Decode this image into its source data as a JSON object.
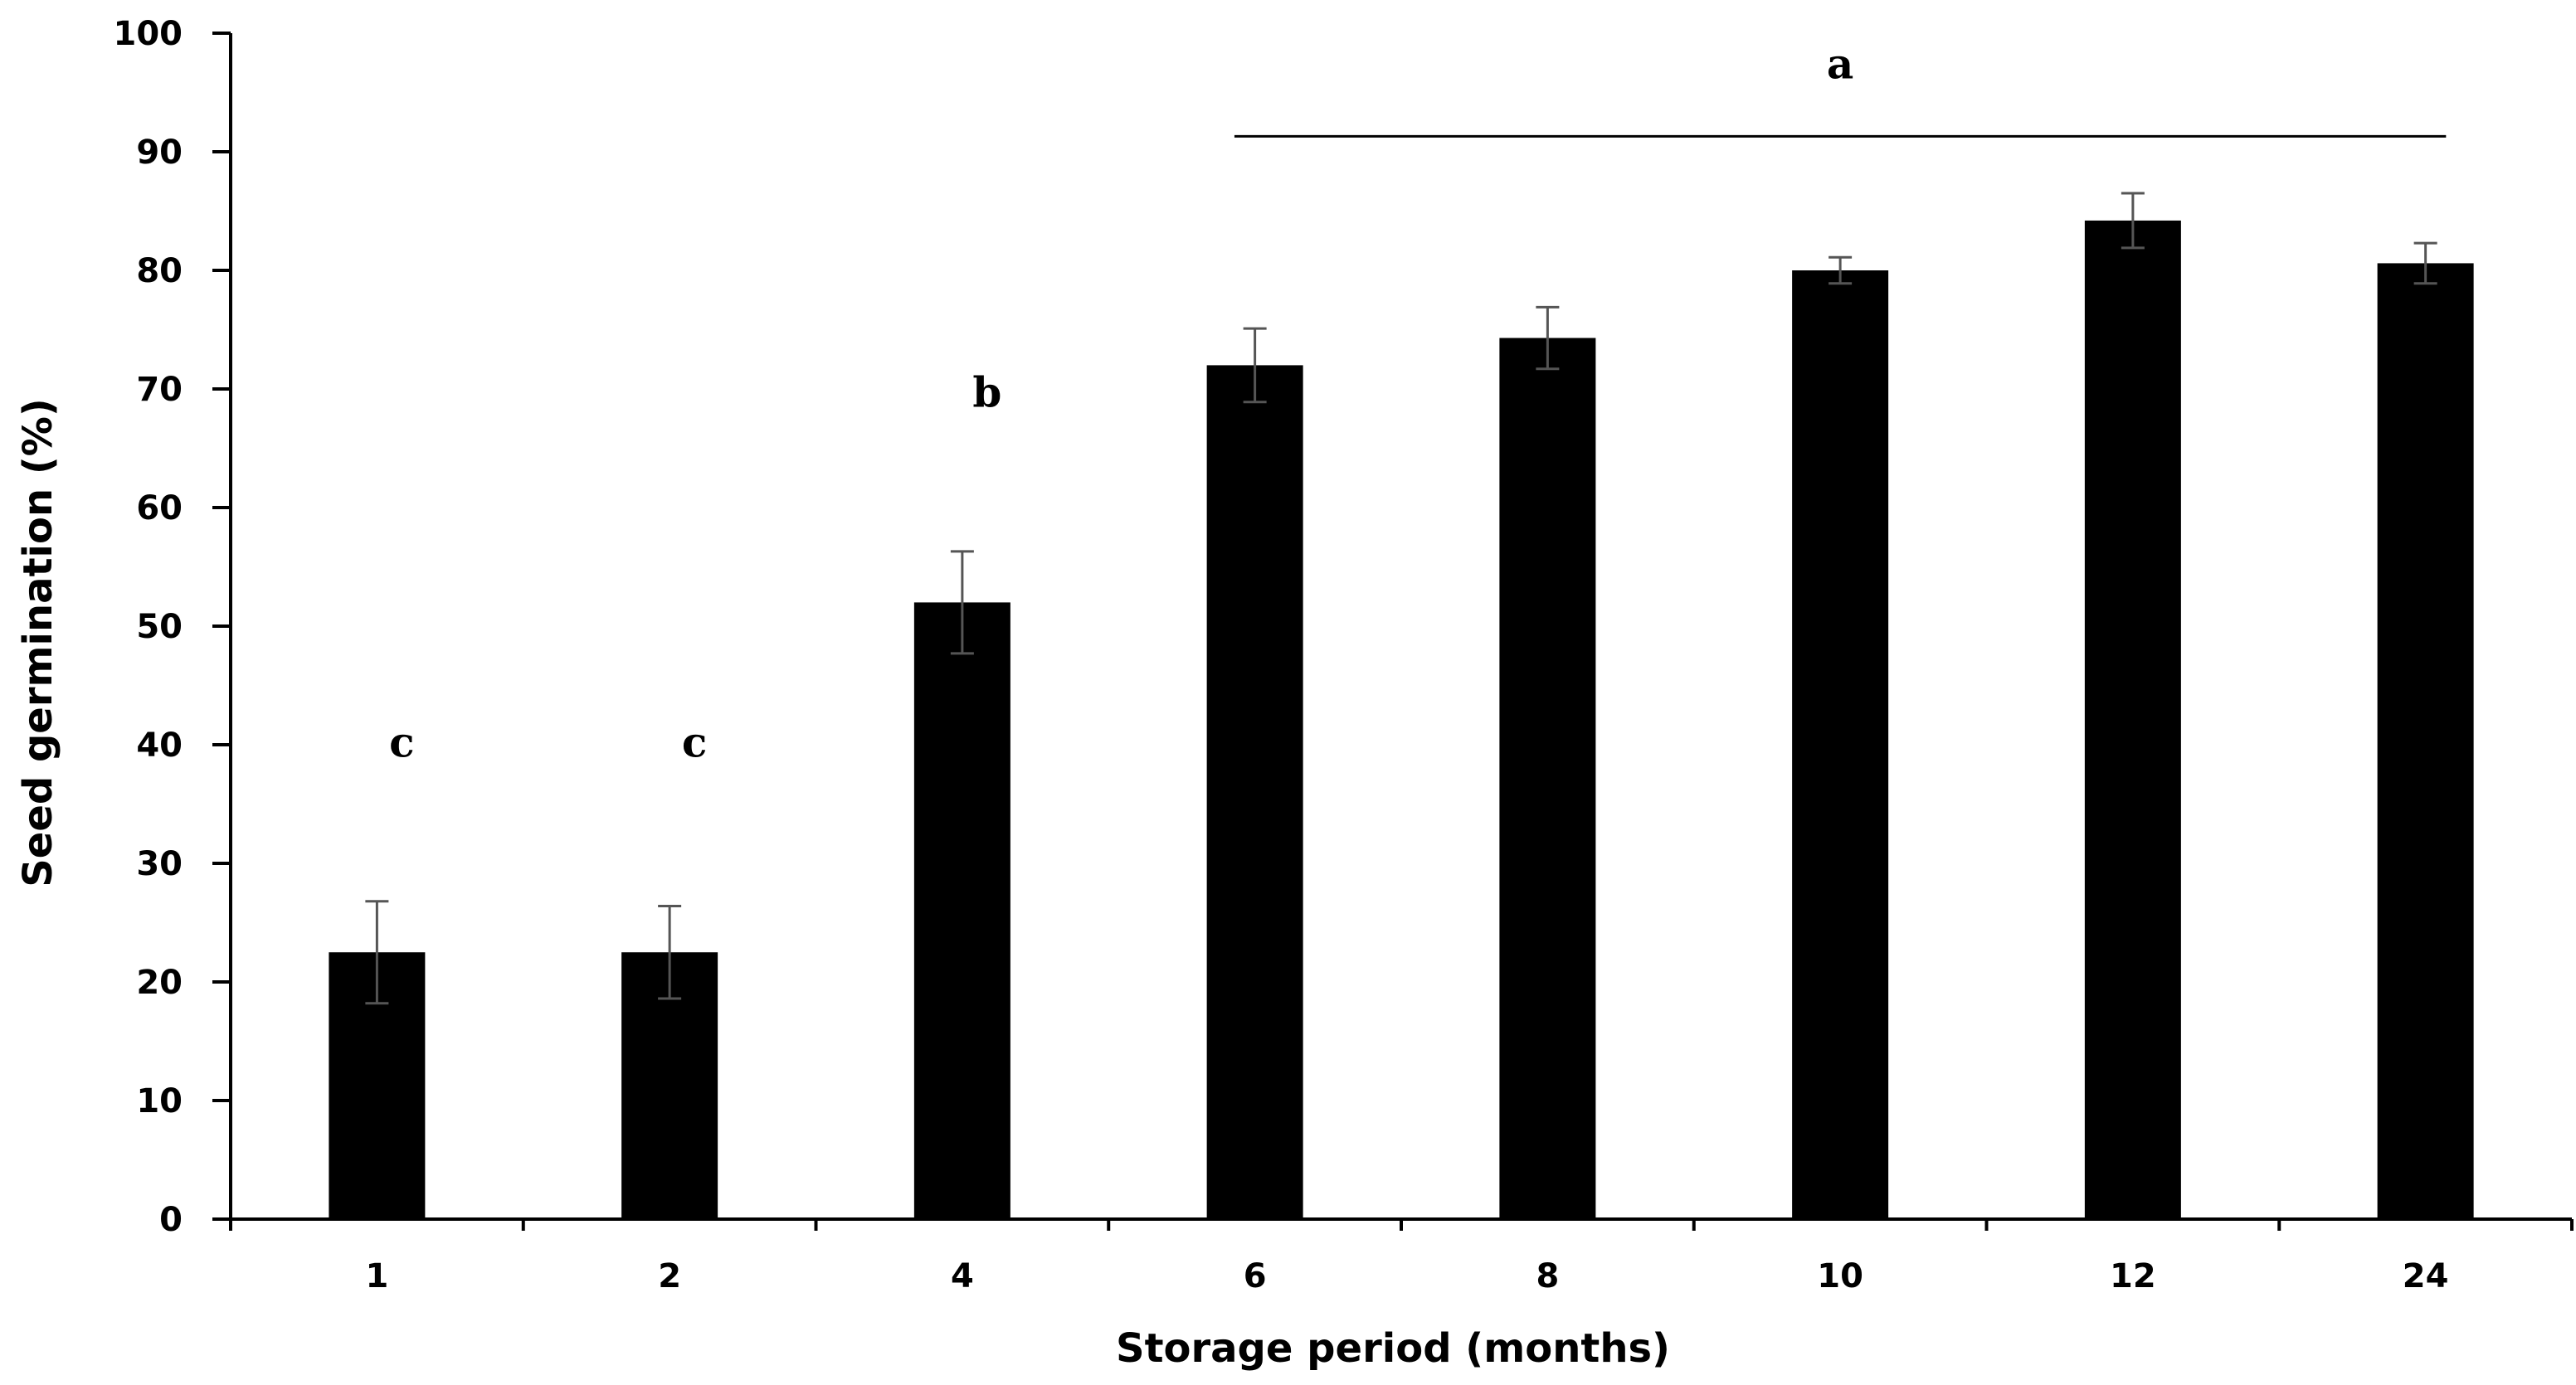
{
  "chart_data": {
    "type": "bar",
    "xlabel": "Storage period (months)",
    "ylabel": "Seed germination (%)",
    "categories": [
      "1",
      "2",
      "4",
      "6",
      "8",
      "10",
      "12",
      "24"
    ],
    "values": [
      22.5,
      22.5,
      52,
      72,
      74.3,
      80,
      84.2,
      80.6
    ],
    "error": [
      4.3,
      3.9,
      4.3,
      3.1,
      2.6,
      1.1,
      2.3,
      1.7
    ],
    "significance": [
      "c",
      "c",
      "b",
      "",
      "",
      "",
      "",
      ""
    ],
    "group_annotation": {
      "label": "a",
      "from_category": "6",
      "to_category": "24"
    },
    "ylim": [
      0,
      100
    ],
    "yticks": [
      0,
      10,
      20,
      30,
      40,
      50,
      60,
      70,
      80,
      90,
      100
    ],
    "grid": false,
    "legend": "none",
    "colors": {
      "bar": "#000000",
      "error_bar": "#555555",
      "axis": "#000000"
    }
  }
}
